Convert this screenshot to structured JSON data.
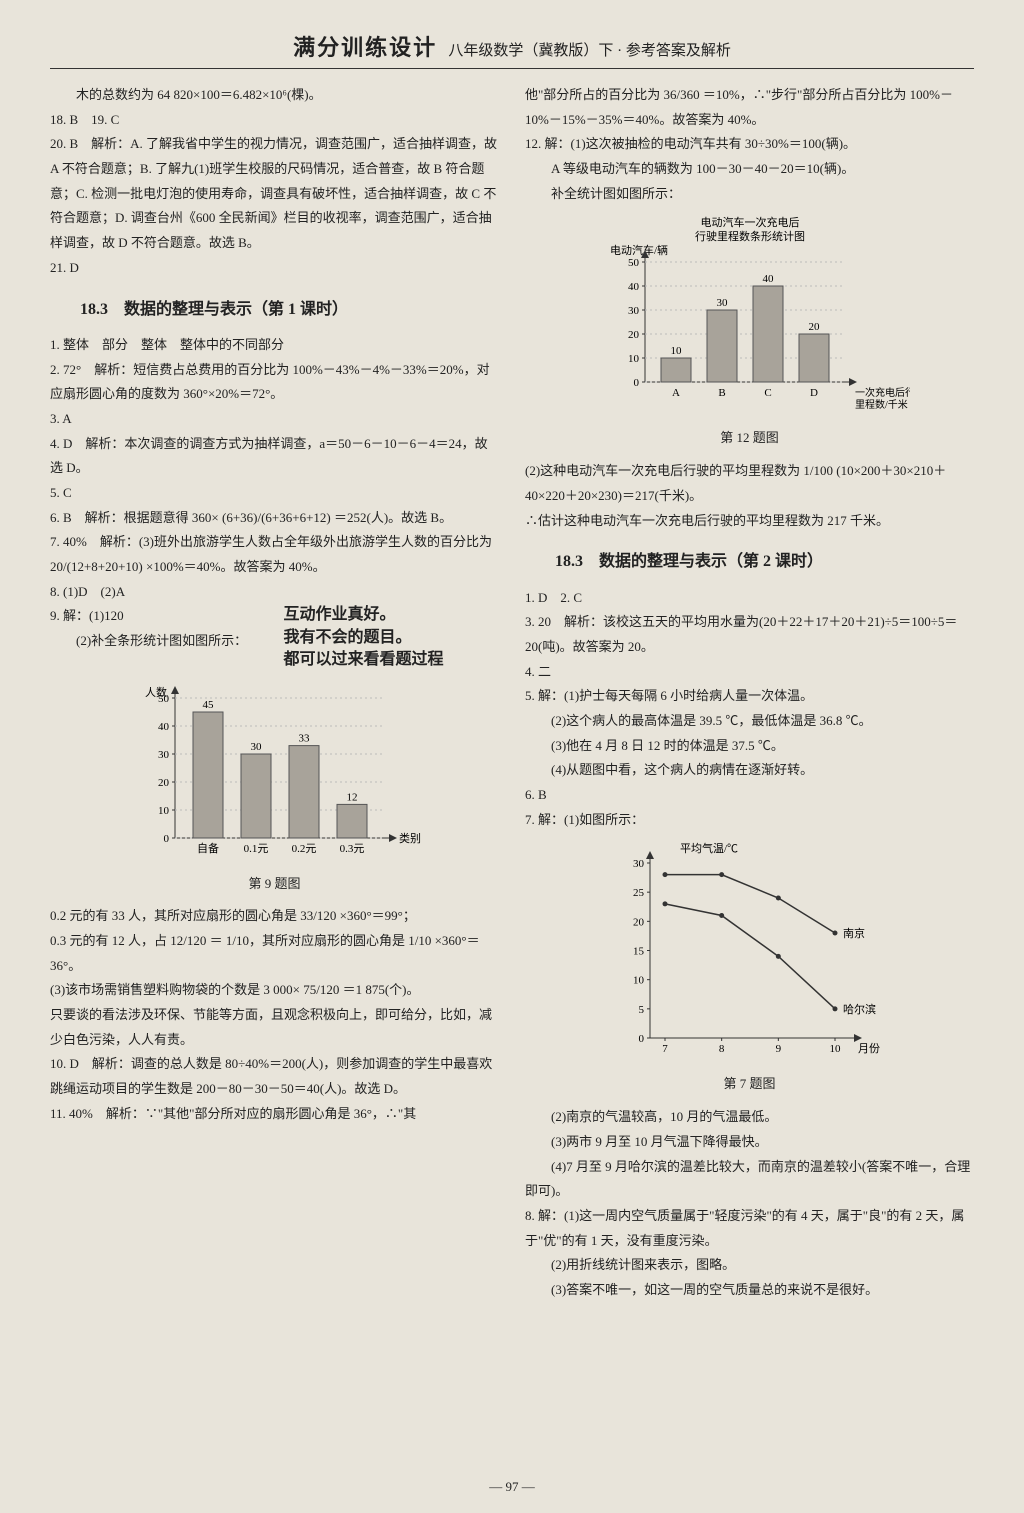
{
  "header": {
    "title": "满分训练设计",
    "subtitle": "八年级数学（冀教版）下 · 参考答案及解析"
  },
  "footer": {
    "page_number": "— 97 —"
  },
  "left": {
    "l1": "木的总数约为 64 820×100＝6.482×10⁶(棵)。",
    "l2": "18. B　19. C",
    "l3": "20. B　解析：A. 了解我省中学生的视力情况，调查范围广，适合抽样调查，故 A 不符合题意；B. 了解九(1)班学生校服的尺码情况，适合普查，故 B 符合题意；C. 检测一批电灯泡的使用寿命，调查具有破坏性，适合抽样调查，故 C 不符合题意；D. 调查台州《600 全民新闻》栏目的收视率，调查范围广，适合抽样调查，故 D 不符合题意。故选 B。",
    "l4": "21. D",
    "sec1": "18.3　数据的整理与表示（第 1 课时）",
    "a1": "1. 整体　部分　整体　整体中的不同部分",
    "a2": "2. 72°　解析：短信费占总费用的百分比为 100%－43%－4%－33%＝20%，对应扇形圆心角的度数为 360°×20%＝72°。",
    "a3": "3. A",
    "a4": "4. D　解析：本次调查的调查方式为抽样调查，a＝50－6－10－6－4＝24，故选 D。",
    "a5": "5. C",
    "a6": "6. B　解析：根据题意得 360× (6+36)/(6+36+6+12) ＝252(人)。故选 B。",
    "a7": "7. 40%　解析：(3)班外出旅游学生人数占全年级外出旅游学生人数的百分比为 20/(12+8+20+10) ×100%＝40%。故答案为 40%。",
    "a8": "8. (1)D　(2)A",
    "a9a": "9. 解：(1)120",
    "a9b": "(2)补全条形统计图如图所示：",
    "hand1": "互动作业真好。",
    "hand2": "我有不会的题目。",
    "hand3": "都可以过来看看题过程",
    "chart9": {
      "type": "bar",
      "xlabel": "类别",
      "ylabel": "人数",
      "y_ticks": [
        0,
        10,
        20,
        30,
        40,
        50
      ],
      "categories": [
        "自备",
        "0.1元",
        "0.2元",
        "0.3元"
      ],
      "values": [
        45,
        30,
        33,
        12
      ],
      "bar_color": "#a8a39a",
      "value_labels": [
        "45",
        "30",
        "33",
        "12"
      ],
      "caption": "第 9 题图",
      "axis_color": "#333",
      "grid": false,
      "fontsize": 11
    },
    "a9c": "0.2 元的有 33 人，其所对应扇形的圆心角是 33/120 ×360°＝99°；",
    "a9d": "0.3 元的有 12 人，占 12/120 ＝ 1/10，其所对应扇形的圆心角是 1/10 ×360°＝36°。",
    "a9e": "(3)该市场需销售塑料购物袋的个数是 3 000× 75/120 ＝1 875(个)。",
    "a9f": "只要谈的看法涉及环保、节能等方面，且观念积极向上，即可给分，比如，减少白色污染，人人有责。",
    "a10": "10. D　解析：调查的总人数是 80÷40%＝200(人)，则参加调查的学生中最喜欢跳绳运动项目的学生数是 200－80－30－50＝40(人)。故选 D。",
    "a11": "11. 40%　解析：∵\"其他\"部分所对应的扇形圆心角是 36°，∴\"其"
  },
  "right": {
    "r1": "他\"部分所占的百分比为 36/360 ＝10%，∴\"步行\"部分所占百分比为 100%－10%－15%－35%＝40%。故答案为 40%。",
    "r2": "12. 解：(1)这次被抽检的电动汽车共有 30÷30%＝100(辆)。",
    "r3": "A 等级电动汽车的辆数为 100－30－40－20＝10(辆)。",
    "r4": "补全统计图如图所示：",
    "chart12": {
      "type": "bar",
      "title_line1": "电动汽车一次充电后",
      "title_line2": "行驶里程数条形统计图",
      "ylabel": "电动汽车/辆",
      "xlabel": "一次充电后行驶里程数/千米",
      "y_ticks": [
        0,
        10,
        20,
        30,
        40,
        50
      ],
      "categories": [
        "A",
        "B",
        "C",
        "D"
      ],
      "values": [
        10,
        30,
        40,
        20
      ],
      "bar_color": "#a8a39a",
      "value_labels": [
        "10",
        "30",
        "40",
        "20"
      ],
      "caption": "第 12 题图",
      "axis_color": "#333",
      "fontsize": 11
    },
    "r5": "(2)这种电动汽车一次充电后行驶的平均里程数为 1/100 (10×200＋30×210＋40×220＋20×230)＝217(千米)。",
    "r6": "∴估计这种电动汽车一次充电后行驶的平均里程数为 217 千米。",
    "sec2": "18.3　数据的整理与表示（第 2 课时）",
    "b1": "1. D　2. C",
    "b2": "3. 20　解析：该校这五天的平均用水量为(20＋22＋17＋20＋21)÷5＝100÷5＝20(吨)。故答案为 20。",
    "b3": "4. 二",
    "b4": "5. 解：(1)护士每天每隔 6 小时给病人量一次体温。",
    "b5": "(2)这个病人的最高体温是 39.5 ℃，最低体温是 36.8 ℃。",
    "b6": "(3)他在 4 月 8 日 12 时的体温是 37.5 ℃。",
    "b7": "(4)从题图中看，这个病人的病情在逐渐好转。",
    "b8": "6. B",
    "b9": "7. 解：(1)如图所示：",
    "chart7": {
      "type": "line",
      "ylabel": "平均气温/℃",
      "xlabel": "月份",
      "y_ticks": [
        0,
        5,
        10,
        15,
        20,
        25,
        30
      ],
      "x_ticks": [
        7,
        8,
        9,
        10
      ],
      "series": [
        {
          "name": "南京",
          "color": "#333",
          "points": [
            [
              7,
              28
            ],
            [
              8,
              28
            ],
            [
              9,
              24
            ],
            [
              10,
              18
            ]
          ]
        },
        {
          "name": "哈尔滨",
          "color": "#333",
          "points": [
            [
              7,
              23
            ],
            [
              8,
              21
            ],
            [
              9,
              14
            ],
            [
              10,
              5
            ]
          ]
        }
      ],
      "caption": "第 7 题图",
      "axis_color": "#333",
      "fontsize": 11
    },
    "b10": "(2)南京的气温较高，10 月的气温最低。",
    "b11": "(3)两市 9 月至 10 月气温下降得最快。",
    "b12": "(4)7 月至 9 月哈尔滨的温差比较大，而南京的温差较小(答案不唯一，合理即可)。",
    "b13": "8. 解：(1)这一周内空气质量属于\"轻度污染\"的有 4 天，属于\"良\"的有 2 天，属于\"优\"的有 1 天，没有重度污染。",
    "b14": "(2)用折线统计图来表示，图略。",
    "b15": "(3)答案不唯一，如这一周的空气质量总的来说不是很好。"
  }
}
